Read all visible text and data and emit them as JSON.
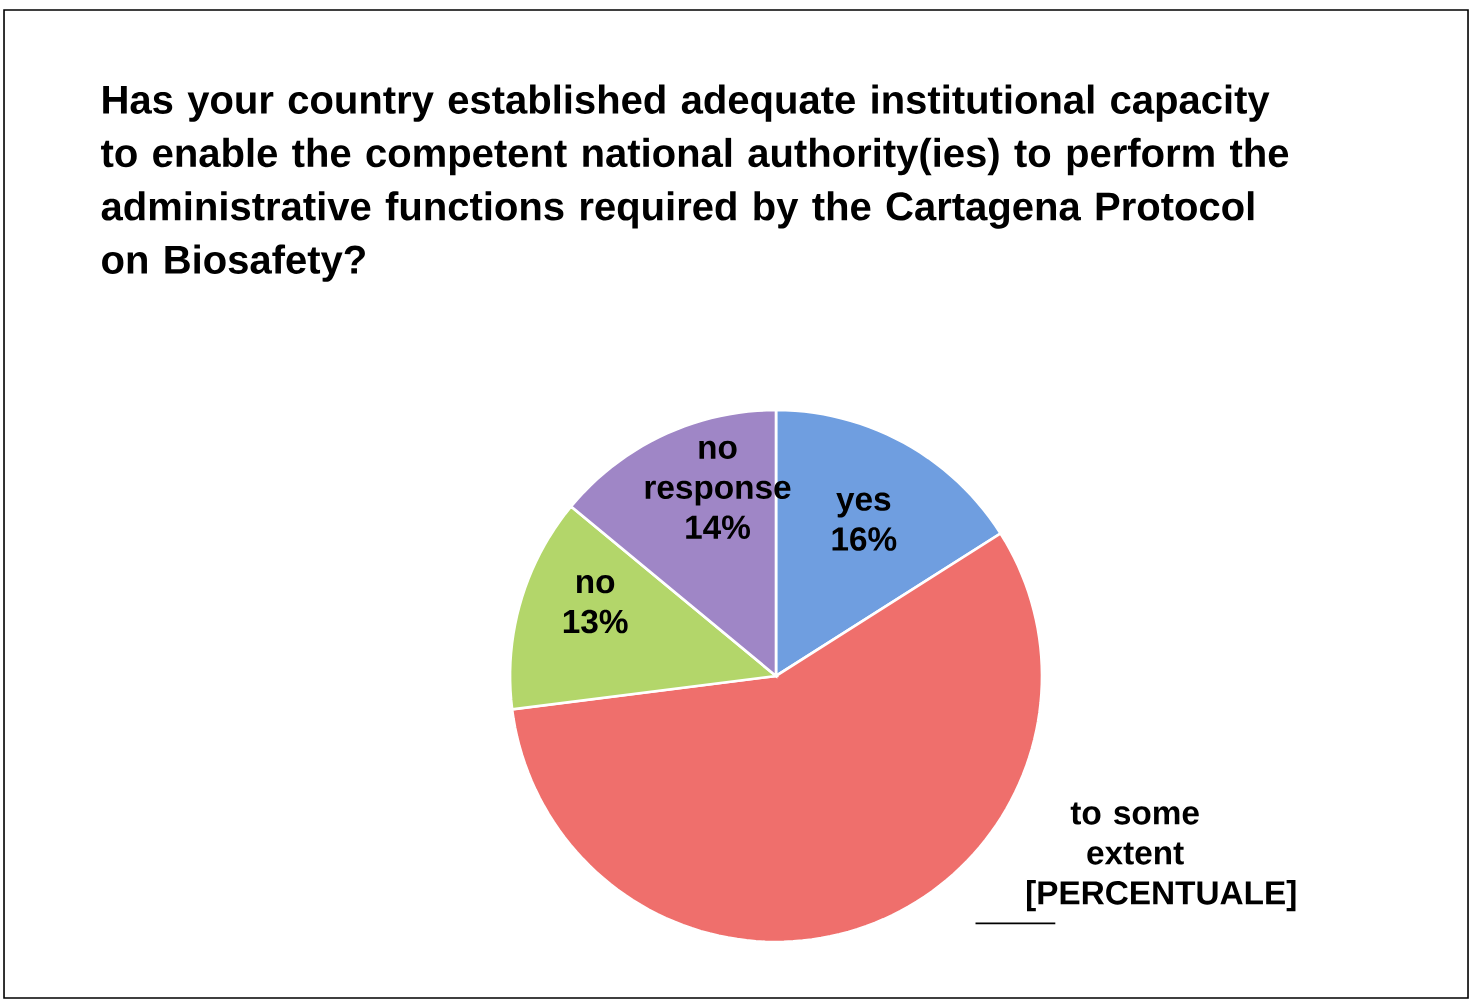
{
  "chart_data": {
    "type": "pie",
    "title": "Has your country established adequate institutional capacity to enable the competent national authority(ies) to perform the administrative functions required by the Cartagena Protocol on Biosafety?",
    "categories": [
      "yes",
      "to some extent",
      "no",
      "no response"
    ],
    "values": [
      16,
      57,
      13,
      14
    ],
    "value_labels": [
      "16%",
      "[PERCENTUALE]",
      "13%",
      "14%"
    ],
    "colors": [
      "#6f9ee0",
      "#ef6f6c",
      "#b3d66a",
      "#9f86c6"
    ]
  }
}
